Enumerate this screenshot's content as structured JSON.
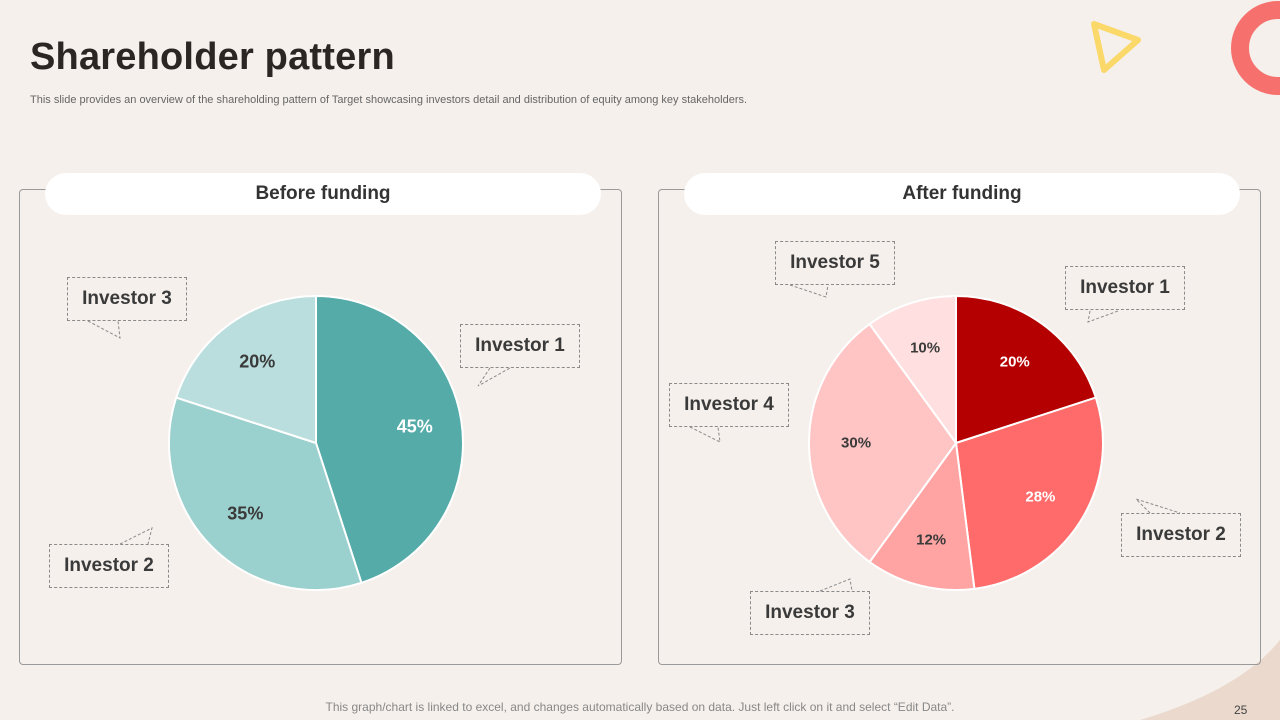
{
  "slide": {
    "title": "Shareholder pattern",
    "subtitle": "This slide provides an overview of the shareholding pattern of Target showcasing investors detail and distribution of equity among key stakeholders.",
    "footer_note": "This graph/chart is linked to excel, and changes automatically based on data. Just left click on it and select “Edit Data”.",
    "page_number": "25"
  },
  "chart_data": [
    {
      "type": "pie",
      "title": "Before funding",
      "categories": [
        "Investor 1",
        "Investor 2",
        "Investor 3"
      ],
      "values": [
        45,
        35,
        20
      ],
      "labels": [
        "45%",
        "35%",
        "20%"
      ],
      "colors": [
        "#54aba8",
        "#9ad0cd",
        "#badedd"
      ],
      "label_colors": [
        "#ffffff",
        "#3a3a3a",
        "#3a3a3a"
      ]
    },
    {
      "type": "pie",
      "title": "After funding",
      "categories": [
        "Investor 1",
        "Investor 2",
        "Investor 3",
        "Investor 4",
        "Investor 5"
      ],
      "values": [
        20,
        28,
        12,
        30,
        10
      ],
      "labels": [
        "20%",
        "28%",
        "12%",
        "30%",
        "10%"
      ],
      "colors": [
        "#b40000",
        "#ff6b6b",
        "#ffa3a3",
        "#ffc5c5",
        "#ffdfdf"
      ],
      "label_colors": [
        "#ffffff",
        "#ffffff",
        "#3a3a3a",
        "#3a3a3a",
        "#3a3a3a"
      ]
    }
  ],
  "colors": {
    "background": "#f5f0ec",
    "accent_coral": "#f6716e",
    "accent_yellow": "#fbd86a"
  }
}
